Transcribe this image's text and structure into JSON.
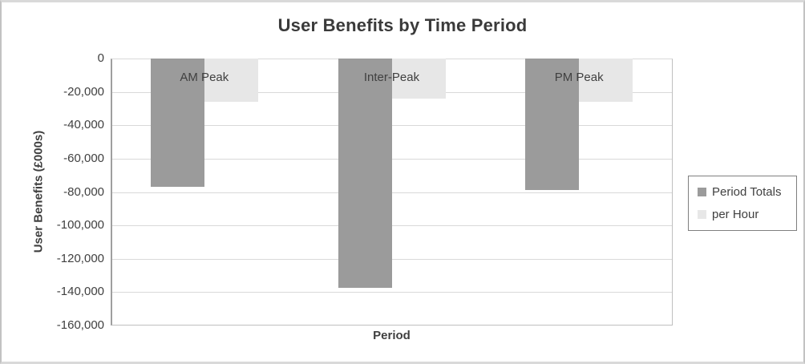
{
  "chart_data": {
    "type": "bar",
    "title": "User Benefits by Time Period",
    "xlabel": "Period",
    "ylabel": "User Benefits (£000s)",
    "categories": [
      "AM Peak",
      "Inter-Peak",
      "PM Peak"
    ],
    "series": [
      {
        "name": "Period Totals",
        "color": "#9b9b9b",
        "values": [
          -77000,
          -137500,
          -79000
        ]
      },
      {
        "name": "per Hour",
        "color": "#e7e7e7",
        "values": [
          -26000,
          -24000,
          -25800
        ]
      }
    ],
    "ylim": [
      -160000,
      0
    ],
    "ytick_interval": 20000,
    "ytick_labels": [
      "0",
      "-20,000",
      "-40,000",
      "-60,000",
      "-80,000",
      "-100,000",
      "-120,000",
      "-140,000",
      "-160,000"
    ],
    "grid": true,
    "legend_position": "right"
  },
  "colors": {
    "series_dark": "#9b9b9b",
    "series_light": "#e7e7e7",
    "gridline": "#d9d9d9",
    "axis_line": "#9f9f9f",
    "plot_border": "#bfbfbf",
    "legend_border": "#7f7f7f",
    "text": "#404040",
    "title_text": "#3a3a3a",
    "outer_border": "#c2c2c2"
  }
}
